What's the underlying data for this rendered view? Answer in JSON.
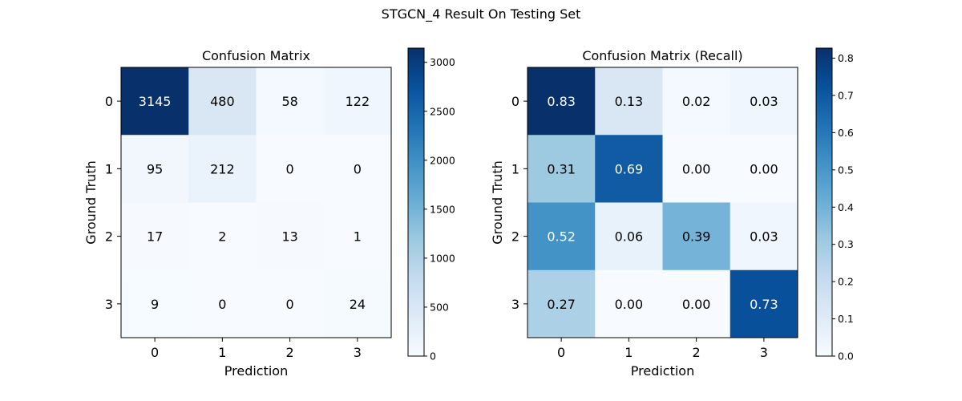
{
  "suptitle": "STGCN_4 Result On Testing Set",
  "chart_data": [
    {
      "type": "heatmap",
      "title": "Confusion Matrix",
      "xlabel": "Prediction",
      "ylabel": "Ground Truth",
      "x_tick_labels": [
        "0",
        "1",
        "2",
        "3"
      ],
      "y_tick_labels": [
        "0",
        "1",
        "2",
        "3"
      ],
      "cell_labels": [
        [
          "3145",
          "480",
          "58",
          "122"
        ],
        [
          "95",
          "212",
          "0",
          "0"
        ],
        [
          "17",
          "2",
          "13",
          "1"
        ],
        [
          "9",
          "0",
          "0",
          "24"
        ]
      ],
      "values": [
        [
          3145,
          480,
          58,
          122
        ],
        [
          95,
          212,
          0,
          0
        ],
        [
          17,
          2,
          13,
          1
        ],
        [
          9,
          0,
          0,
          24
        ]
      ],
      "colormap": "Blues",
      "color_range": [
        0,
        3145
      ],
      "colorbar_ticks": [
        0,
        500,
        1000,
        1500,
        2000,
        2500,
        3000
      ],
      "colorbar_tick_labels": [
        "0",
        "500",
        "1000",
        "1500",
        "2000",
        "2500",
        "3000"
      ]
    },
    {
      "type": "heatmap",
      "title": "Confusion Matrix (Recall)",
      "xlabel": "Prediction",
      "ylabel": "Ground Truth",
      "x_tick_labels": [
        "0",
        "1",
        "2",
        "3"
      ],
      "y_tick_labels": [
        "0",
        "1",
        "2",
        "3"
      ],
      "cell_labels": [
        [
          "0.83",
          "0.13",
          "0.02",
          "0.03"
        ],
        [
          "0.31",
          "0.69",
          "0.00",
          "0.00"
        ],
        [
          "0.52",
          "0.06",
          "0.39",
          "0.03"
        ],
        [
          "0.27",
          "0.00",
          "0.00",
          "0.73"
        ]
      ],
      "values": [
        [
          0.826,
          0.126,
          0.015,
          0.032
        ],
        [
          0.309,
          0.691,
          0.0,
          0.0
        ],
        [
          0.515,
          0.061,
          0.394,
          0.03
        ],
        [
          0.273,
          0.0,
          0.0,
          0.727
        ]
      ],
      "colormap": "Blues",
      "color_range": [
        0,
        0.827
      ],
      "colorbar_ticks": [
        0.0,
        0.1,
        0.2,
        0.3,
        0.4,
        0.5,
        0.6,
        0.7,
        0.8
      ],
      "colorbar_tick_labels": [
        "0.0",
        "0.1",
        "0.2",
        "0.3",
        "0.4",
        "0.5",
        "0.6",
        "0.7",
        "0.8"
      ]
    }
  ]
}
